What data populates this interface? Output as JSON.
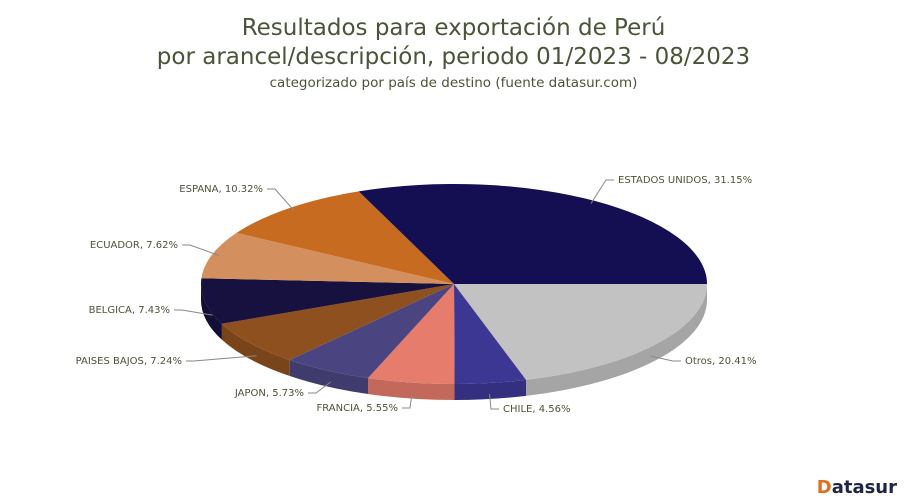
{
  "title_line1": "Resultados para exportación de Perú",
  "title_line2": "por arancel/descripción, periodo 01/2023 - 08/2023",
  "subtitle": "categorizado por país de destino (fuente datasur.com)",
  "logo": "Datasur",
  "chart_data": {
    "type": "pie",
    "style": "3d",
    "title": "Resultados para exportación de Perú por arancel/descripción, periodo 01/2023 - 08/2023",
    "subtitle": "categorizado por país de destino (fuente datasur.com)",
    "slices": [
      {
        "label": "Otros",
        "value": 20.41,
        "text": "Otros, 20.41%",
        "color": "#c2c2c2"
      },
      {
        "label": "CHILE",
        "value": 4.56,
        "text": "CHILE, 4.56%",
        "color": "#3d3794"
      },
      {
        "label": "FRANCIA",
        "value": 5.55,
        "text": "FRANCIA, 5.55%",
        "color": "#e57c6c"
      },
      {
        "label": "JAPON",
        "value": 5.73,
        "text": "JAPON, 5.73%",
        "color": "#4a4580"
      },
      {
        "label": "PAISES BAJOS",
        "value": 7.24,
        "text": "PAISES BAJOS, 7.24%",
        "color": "#8f5020"
      },
      {
        "label": "BELGICA",
        "value": 7.43,
        "text": "BELGICA, 7.43%",
        "color": "#16113f"
      },
      {
        "label": "ECUADOR",
        "value": 7.62,
        "text": "ECUADOR, 7.62%",
        "color": "#d38f5e"
      },
      {
        "label": "ESPANA",
        "value": 10.32,
        "text": "ESPANA, 10.32%",
        "color": "#c76b20"
      },
      {
        "label": "ESTADOS UNIDOS",
        "value": 31.15,
        "text": "ESTADOS UNIDOS, 31.15%",
        "color": "#140f52"
      }
    ],
    "legend": "none"
  }
}
